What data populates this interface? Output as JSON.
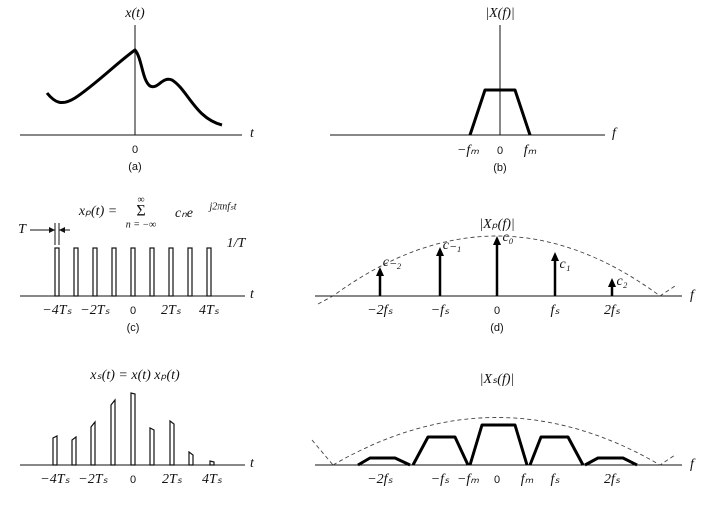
{
  "panels": {
    "a": {
      "y_label": "x(t)",
      "x_label": "t",
      "ticks": [
        "0"
      ],
      "caption": "(a)"
    },
    "b": {
      "y_label": "|X(f)|",
      "x_label": "f",
      "ticks": [
        "−fₘ",
        "0",
        "fₘ"
      ],
      "caption": "(b)"
    },
    "c": {
      "period_label": "T",
      "formula": {
        "lhs": "xₚ(t) =",
        "sigma": "Σ",
        "upper": "∞",
        "lower": "n = −∞",
        "term": "cₙe",
        "exponent": "j2πnfₛt"
      },
      "height_label": "1/T",
      "x_label": "t",
      "ticks": [
        "−4Tₛ",
        "−2Tₛ",
        "0",
        "2Tₛ",
        "4Tₛ"
      ],
      "caption": "(c)"
    },
    "d": {
      "y_label": "|Xₚ(f)|",
      "coefficients": [
        "c₋₂",
        "c₋₁",
        "c₀",
        "c₁",
        "c₂"
      ],
      "x_label": "f",
      "ticks": [
        "−2fₛ",
        "−fₛ",
        "0",
        "fₛ",
        "2fₛ"
      ],
      "caption": "(d)"
    },
    "e": {
      "formula": "xₛ(t) = x(t) xₚ(t)",
      "x_label": "t",
      "ticks": [
        "−4Tₛ",
        "−2Tₛ",
        "0",
        "2Tₛ",
        "4Tₛ"
      ]
    },
    "f": {
      "y_label": "|Xₛ(f)|",
      "x_label": "f",
      "ticks": [
        "−2fₛ",
        "−fₛ",
        "−fₘ",
        "0",
        "fₘ",
        "fₛ",
        "2fₛ"
      ]
    }
  }
}
